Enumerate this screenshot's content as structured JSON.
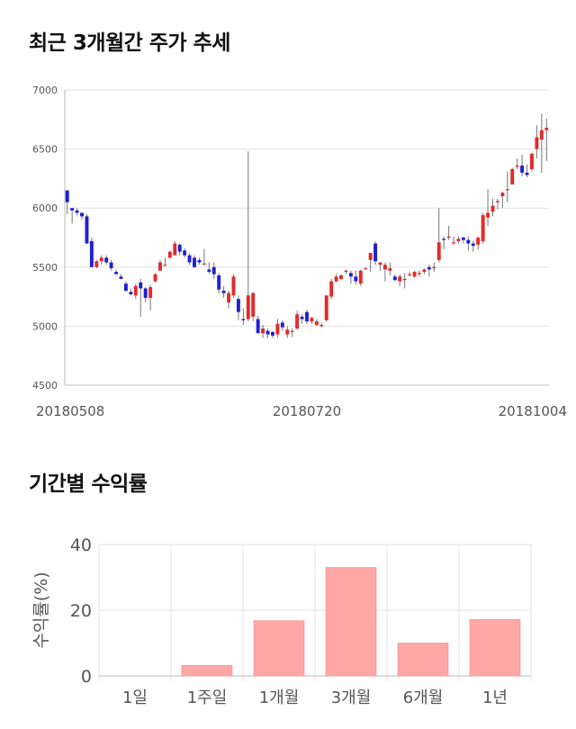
{
  "sections": {
    "price_title": "최근 3개월간 주가 추세",
    "returns_title": "기간별 수익률"
  },
  "colors": {
    "up": "#e32a2a",
    "down": "#1f1fd6",
    "bar": "#ffa6a6",
    "bar_border": "#f08a8a",
    "grid": "#e3e3e3",
    "axis": "#bbbbbb"
  },
  "chart_data": [
    {
      "type": "candlestick",
      "title": "최근 3개월간 주가 추세",
      "ylim": [
        4500,
        7000
      ],
      "y_ticks": [
        "4500",
        "5000",
        "5500",
        "6000",
        "6500",
        "7000"
      ],
      "x_tick_labels": [
        {
          "label": "20180508",
          "index": 0
        },
        {
          "label": "20180720",
          "index": 49
        },
        {
          "label": "20181004",
          "index": 98
        }
      ],
      "grid": true,
      "ohlc": [
        [
          6150,
          6150,
          5950,
          6050
        ],
        [
          6000,
          6000,
          5870,
          5980
        ],
        [
          5980,
          6000,
          5940,
          5960
        ],
        [
          5960,
          5960,
          5900,
          5930
        ],
        [
          5930,
          5950,
          5700,
          5700
        ],
        [
          5720,
          5750,
          5500,
          5500
        ],
        [
          5500,
          5560,
          5490,
          5550
        ],
        [
          5550,
          5600,
          5520,
          5580
        ],
        [
          5580,
          5600,
          5520,
          5540
        ],
        [
          5540,
          5560,
          5470,
          5490
        ],
        [
          5460,
          5480,
          5440,
          5440
        ],
        [
          5420,
          5440,
          5400,
          5400
        ],
        [
          5360,
          5380,
          5290,
          5300
        ],
        [
          5290,
          5320,
          5260,
          5270
        ],
        [
          5260,
          5360,
          5230,
          5340
        ],
        [
          5370,
          5400,
          5080,
          5320
        ],
        [
          5320,
          5330,
          5200,
          5240
        ],
        [
          5240,
          5350,
          5130,
          5330
        ],
        [
          5380,
          5450,
          5370,
          5440
        ],
        [
          5470,
          5560,
          5470,
          5540
        ],
        [
          5520,
          5580,
          5510,
          5520
        ],
        [
          5580,
          5640,
          5570,
          5630
        ],
        [
          5600,
          5720,
          5600,
          5700
        ],
        [
          5690,
          5700,
          5600,
          5630
        ],
        [
          5640,
          5660,
          5580,
          5600
        ],
        [
          5600,
          5620,
          5520,
          5540
        ],
        [
          5580,
          5600,
          5490,
          5500
        ],
        [
          5560,
          5580,
          5520,
          5540
        ],
        [
          5530,
          5650,
          5520,
          5530
        ],
        [
          5480,
          5540,
          5440,
          5460
        ],
        [
          5500,
          5540,
          5400,
          5440
        ],
        [
          5430,
          5450,
          5280,
          5310
        ],
        [
          5300,
          5340,
          5240,
          5280
        ],
        [
          5200,
          5300,
          5150,
          5280
        ],
        [
          5260,
          5440,
          5240,
          5420
        ],
        [
          5230,
          5260,
          5050,
          5120
        ],
        [
          5060,
          5150,
          5010,
          5050
        ],
        [
          5060,
          6480,
          5040,
          5260
        ],
        [
          5080,
          5290,
          5040,
          5280
        ],
        [
          5060,
          5090,
          4940,
          4940
        ],
        [
          4940,
          5010,
          4900,
          4980
        ],
        [
          4960,
          4980,
          4900,
          4930
        ],
        [
          4950,
          4960,
          4900,
          4920
        ],
        [
          4930,
          5060,
          4900,
          5020
        ],
        [
          5030,
          5050,
          4960,
          4990
        ],
        [
          4930,
          5000,
          4900,
          4970
        ],
        [
          4960,
          4980,
          4910,
          4960
        ],
        [
          4980,
          5130,
          4970,
          5100
        ],
        [
          5080,
          5100,
          5020,
          5060
        ],
        [
          5120,
          5140,
          5020,
          5040
        ],
        [
          5040,
          5080,
          5020,
          5070
        ],
        [
          5010,
          5060,
          5000,
          5040
        ],
        [
          5000,
          5030,
          4990,
          5010
        ],
        [
          5050,
          5260,
          5040,
          5260
        ],
        [
          5250,
          5400,
          5230,
          5380
        ],
        [
          5380,
          5440,
          5370,
          5420
        ],
        [
          5400,
          5440,
          5390,
          5430
        ],
        [
          5470,
          5480,
          5440,
          5470
        ],
        [
          5450,
          5470,
          5360,
          5420
        ],
        [
          5420,
          5470,
          5350,
          5380
        ],
        [
          5360,
          5480,
          5340,
          5470
        ],
        [
          5490,
          5500,
          5480,
          5490
        ],
        [
          5560,
          5620,
          5460,
          5620
        ],
        [
          5700,
          5720,
          5520,
          5550
        ],
        [
          5520,
          5540,
          5470,
          5540
        ],
        [
          5480,
          5540,
          5380,
          5520
        ],
        [
          5470,
          5540,
          5430,
          5490
        ],
        [
          5420,
          5440,
          5380,
          5390
        ],
        [
          5380,
          5440,
          5340,
          5420
        ],
        [
          5390,
          5450,
          5320,
          5400
        ],
        [
          5440,
          5460,
          5420,
          5440
        ],
        [
          5420,
          5470,
          5410,
          5460
        ],
        [
          5440,
          5470,
          5420,
          5450
        ],
        [
          5460,
          5490,
          5440,
          5480
        ],
        [
          5500,
          5520,
          5420,
          5480
        ],
        [
          5490,
          5540,
          5460,
          5500
        ],
        [
          5560,
          6000,
          5540,
          5710
        ],
        [
          5740,
          5760,
          5650,
          5730
        ],
        [
          5750,
          5850,
          5730,
          5760
        ],
        [
          5710,
          5760,
          5690,
          5710
        ],
        [
          5720,
          5760,
          5700,
          5740
        ],
        [
          5750,
          5760,
          5700,
          5730
        ],
        [
          5730,
          5760,
          5640,
          5700
        ],
        [
          5700,
          5720,
          5630,
          5680
        ],
        [
          5690,
          5760,
          5650,
          5750
        ],
        [
          5720,
          5960,
          5700,
          5940
        ],
        [
          5920,
          6160,
          5850,
          5960
        ],
        [
          5970,
          6080,
          5930,
          6020
        ],
        [
          6050,
          6080,
          5990,
          6060
        ],
        [
          6100,
          6140,
          6000,
          6130
        ],
        [
          6160,
          6310,
          6050,
          6160
        ],
        [
          6200,
          6340,
          6200,
          6330
        ],
        [
          6350,
          6420,
          6330,
          6360
        ],
        [
          6360,
          6450,
          6270,
          6300
        ],
        [
          6300,
          6370,
          6260,
          6280
        ],
        [
          6330,
          6470,
          6310,
          6460
        ],
        [
          6500,
          6700,
          6420,
          6600
        ],
        [
          6580,
          6800,
          6300,
          6660
        ],
        [
          6660,
          6760,
          6400,
          6680
        ]
      ]
    },
    {
      "type": "bar",
      "title": "기간별 수익률",
      "ylabel": "수익률(%)",
      "categories": [
        "1일",
        "1주일",
        "1개월",
        "3개월",
        "6개월",
        "1년"
      ],
      "values": [
        0,
        3.2,
        16.8,
        33.0,
        10.0,
        17.2
      ],
      "ylim": [
        0,
        40
      ],
      "y_ticks": [
        "0",
        "20",
        "40"
      ],
      "grid": true
    }
  ]
}
